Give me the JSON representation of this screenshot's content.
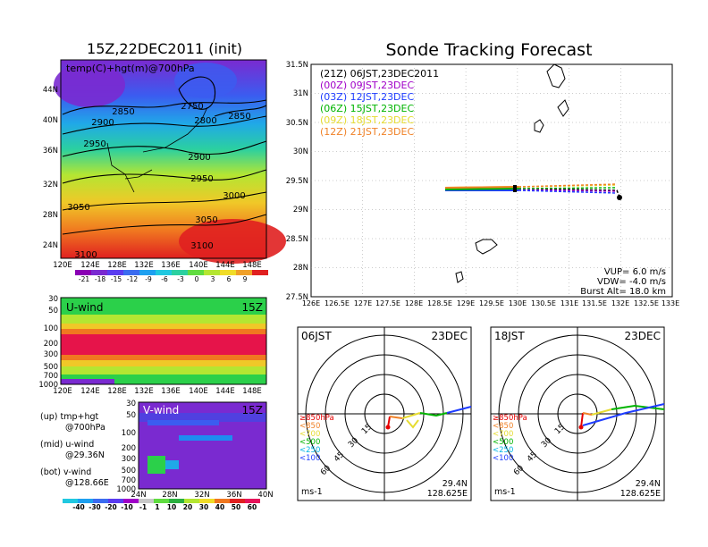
{
  "left_map": {
    "title": "15Z,22DEC2011 (init)",
    "label": "temp(C)+hgt(m)@700hPa",
    "lat_ticks": [
      "44N",
      "40N",
      "36N",
      "32N",
      "28N",
      "24N"
    ],
    "lon_ticks": [
      "120E",
      "124E",
      "128E",
      "132E",
      "136E",
      "140E",
      "144E",
      "148E"
    ],
    "contour_labels": [
      "2750",
      "2800",
      "2850",
      "2850",
      "2900",
      "2900",
      "2950",
      "2950",
      "3000",
      "3050",
      "3050",
      "3100",
      "3100"
    ],
    "colorbar_labels": [
      "-21",
      "-18",
      "-15",
      "-12",
      "-9",
      "-6",
      "-3",
      "0",
      "3",
      "6",
      "9"
    ]
  },
  "uwind": {
    "label": "U-wind",
    "time": "15Z",
    "p_ticks": [
      "30",
      "50",
      "100",
      "200",
      "300",
      "500",
      "700",
      "1000"
    ],
    "lon_ticks": [
      "120E",
      "124E",
      "128E",
      "132E",
      "136E",
      "140E",
      "144E",
      "148E"
    ]
  },
  "vwind": {
    "label": "V-wind",
    "time": "15Z",
    "p_ticks": [
      "30",
      "50",
      "100",
      "200",
      "300",
      "500",
      "700",
      "1000"
    ],
    "lat_ticks": [
      "24N",
      "28N",
      "32N",
      "36N",
      "40N"
    ]
  },
  "legend_left": {
    "up1": "(up) tmp+hgt",
    "up2": "@700hPa",
    "mid1": "(mid) u-wind",
    "mid2": "@29.36N",
    "bot1": "(bot) v-wind",
    "bot2": "@128.66E"
  },
  "wind_colorbar_labels": [
    "-40",
    "-30",
    "-20",
    "-10",
    "-1",
    "1",
    "10",
    "20",
    "30",
    "40",
    "50",
    "60"
  ],
  "track": {
    "title": "Sonde Tracking Forecast",
    "lat_ticks": [
      "31.5N",
      "31N",
      "30.5N",
      "30N",
      "29.5N",
      "29N",
      "28.5N",
      "28N",
      "27.5N"
    ],
    "lon_ticks": [
      "126E",
      "126.5E",
      "127E",
      "127.5E",
      "128E",
      "128.5E",
      "129E",
      "129.5E",
      "130E",
      "130.5E",
      "131E",
      "131.5E",
      "132E",
      "132.5E",
      "133E"
    ],
    "legend": [
      {
        "code": "(21Z)",
        "time": "06JST,23DEC2011",
        "color": "#000000"
      },
      {
        "code": "(00Z)",
        "time": "09JST,23DEC",
        "color": "#a000c8"
      },
      {
        "code": "(03Z)",
        "time": "12JST,23DEC",
        "color": "#1e3cff"
      },
      {
        "code": "(06Z)",
        "time": "15JST,23DEC",
        "color": "#00b400"
      },
      {
        "code": "(09Z)",
        "time": "18JST,23DEC",
        "color": "#e6dc32"
      },
      {
        "code": "(12Z)",
        "time": "21JST,23DEC",
        "color": "#f08228"
      }
    ],
    "vup": "VUP= 6.0 m/s",
    "vdw": "VDW= -4.0 m/s",
    "burst": "Burst Alt= 18.0 km"
  },
  "hodo1": {
    "time": "06JST",
    "date": "23DEC",
    "lat": "29.4N",
    "lon": "128.625E",
    "units": "ms-1",
    "ring_labels": [
      "15",
      "30",
      "45",
      "60"
    ]
  },
  "hodo2": {
    "time": "18JST",
    "date": "23DEC",
    "lat": "29.4N",
    "lon": "128.625E",
    "units": "ms-1",
    "ring_labels": [
      "15",
      "30",
      "45",
      "60"
    ]
  },
  "pressure_legend": [
    "≥850hPa",
    "<850",
    "<700",
    "<500",
    "<250",
    "<100"
  ],
  "pressure_legend_colors": [
    "#e60000",
    "#f08228",
    "#e6dc32",
    "#00b400",
    "#00b4e6",
    "#1e3cff"
  ]
}
